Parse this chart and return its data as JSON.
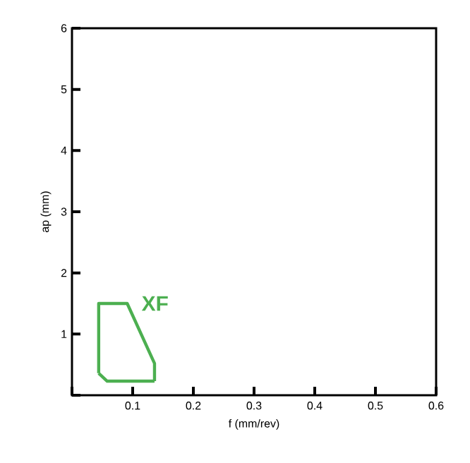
{
  "chart_data": {
    "type": "line",
    "xlabel": "f (mm/rev)",
    "ylabel": "ap (mm)",
    "xlim": [
      0,
      0.6
    ],
    "ylim": [
      0,
      6
    ],
    "xticks": [
      {
        "value": 0,
        "label": null
      },
      0.1,
      0.2,
      0.3,
      0.4,
      0.5,
      0.6
    ],
    "yticks": [
      {
        "value": 0,
        "label": null
      },
      1,
      2,
      3,
      4,
      5,
      6
    ],
    "series": [
      {
        "name": "XF",
        "color": "#4caf50",
        "x": [
          0.044,
          0.044,
          0.091,
          0.136,
          0.136
        ],
        "values": [
          0.36,
          1.5,
          1.5,
          0.52,
          0.23
        ]
      },
      {
        "color": "#4caf50",
        "x": [
          0.044,
          0.058,
          0.136
        ],
        "values": [
          0.36,
          0.23,
          0.23
        ]
      }
    ],
    "marker": "none",
    "line_style": "solid",
    "grid": false,
    "legend": false
  }
}
